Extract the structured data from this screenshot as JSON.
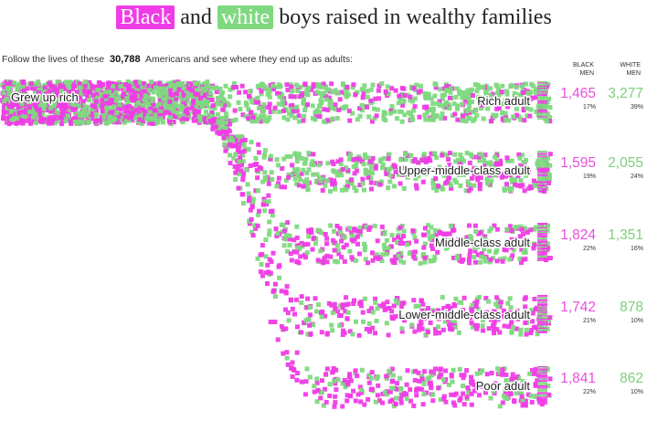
{
  "title": {
    "word1": "Black",
    "word2": "and",
    "word3": "white",
    "rest": "boys raised in wealthy families"
  },
  "subtitle": {
    "prefix": "Follow the lives of these",
    "count": "30,788",
    "suffix": "Americans and see where they end up as adults:"
  },
  "columns": {
    "black": [
      "BLACK",
      "MEN"
    ],
    "white": [
      "WHITE",
      "MEN"
    ]
  },
  "colors": {
    "black": "#f03ce6",
    "white": "#7fd980",
    "black_text": "#e84fdd",
    "white_text": "#7ccf7c"
  },
  "chart_data": {
    "type": "sankey",
    "source": "Grew up rich",
    "series": [
      "Black men",
      "White men"
    ],
    "outcomes": [
      {
        "label": "Rich adult",
        "black": "1,465",
        "black_pct": "17%",
        "white": "3,277",
        "white_pct": "39%",
        "black_n": 1465,
        "white_n": 3277
      },
      {
        "label": "Upper-middle-class adult",
        "black": "1,595",
        "black_pct": "19%",
        "white": "2,055",
        "white_pct": "24%",
        "black_n": 1595,
        "white_n": 2055
      },
      {
        "label": "Middle-class adult",
        "black": "1,824",
        "black_pct": "22%",
        "white": "1,351",
        "white_pct": "16%",
        "black_n": 1824,
        "white_n": 1351
      },
      {
        "label": "Lower-middle-class adult",
        "black": "1,742",
        "black_pct": "21%",
        "white": "878",
        "white_pct": "10%",
        "black_n": 1742,
        "white_n": 878
      },
      {
        "label": "Poor adult",
        "black": "1,841",
        "black_pct": "22%",
        "white": "862",
        "white_pct": "10%",
        "black_n": 1841,
        "white_n": 862
      }
    ]
  }
}
